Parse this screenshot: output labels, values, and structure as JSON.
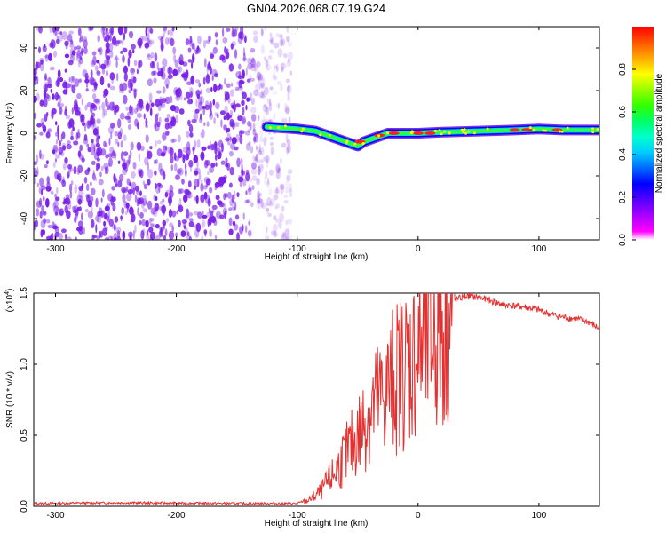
{
  "title": "GN04.2026.068.07.19.G24",
  "chart_data": [
    {
      "type": "heatmap",
      "panel": "top",
      "xlabel": "Height of straight line (km)",
      "ylabel": "Frequency (Hz)",
      "xlim": [
        -318,
        150
      ],
      "ylim": [
        -50,
        50
      ],
      "xticks": [
        -300,
        -200,
        -100,
        0,
        100
      ],
      "yticks": [
        -40,
        -20,
        0,
        20,
        40
      ],
      "colorbar": {
        "label": "Normalized spectral amplitude",
        "range": [
          0,
          1
        ],
        "ticks": [
          "0.0",
          "0.2",
          "0.4",
          "0.6",
          "0.8"
        ],
        "colormap": [
          "#ff00ff",
          "#aa00ff",
          "#5500ff",
          "#0000ff",
          "#0066ff",
          "#00ccff",
          "#00ffcc",
          "#00ff66",
          "#33ff00",
          "#99ff00",
          "#ffff00",
          "#ffaa00",
          "#ff5500",
          "#ff0000"
        ]
      },
      "noise_region": {
        "x": [
          -318,
          -105
        ],
        "y": [
          -50,
          50
        ],
        "color": "#7a20e8"
      },
      "signal_track": {
        "x": [
          -125,
          -100,
          -85,
          -70,
          -60,
          -50,
          -45,
          -35,
          -25,
          -15,
          0,
          20,
          50,
          80,
          100,
          120,
          150
        ],
        "y": [
          3,
          2,
          1,
          -2,
          -4,
          -6,
          -4,
          -2,
          0,
          0,
          0,
          0.5,
          1,
          1.5,
          2,
          1.5,
          1.5
        ]
      }
    },
    {
      "type": "line",
      "panel": "bottom",
      "xlabel": "Height of straight line (km)",
      "ylabel": "SNR (10 * v/v)",
      "multiplier": "(x10",
      "multiplier_exp": "4",
      "xlim": [
        -318,
        150
      ],
      "ylim": [
        0,
        1.5
      ],
      "xticks": [
        -300,
        -200,
        -100,
        0,
        100
      ],
      "yticks": [
        "0.0",
        "0.5",
        "1.0",
        "1.5"
      ],
      "series": [
        {
          "name": "SNR",
          "color": "#e53030",
          "x": [
            -318,
            -250,
            -150,
            -100,
            -90,
            -80,
            -70,
            -60,
            -50,
            -40,
            -30,
            -20,
            -10,
            0,
            10,
            20,
            30,
            40,
            50,
            70,
            90,
            100,
            110,
            120,
            130,
            140,
            150
          ],
          "y": [
            0.02,
            0.025,
            0.02,
            0.02,
            0.05,
            0.12,
            0.25,
            0.4,
            0.55,
            0.75,
            0.85,
            1.0,
            1.1,
            1.2,
            1.3,
            1.4,
            1.45,
            1.48,
            1.47,
            1.42,
            1.4,
            1.38,
            1.35,
            1.33,
            1.32,
            1.3,
            1.25
          ]
        }
      ]
    }
  ]
}
